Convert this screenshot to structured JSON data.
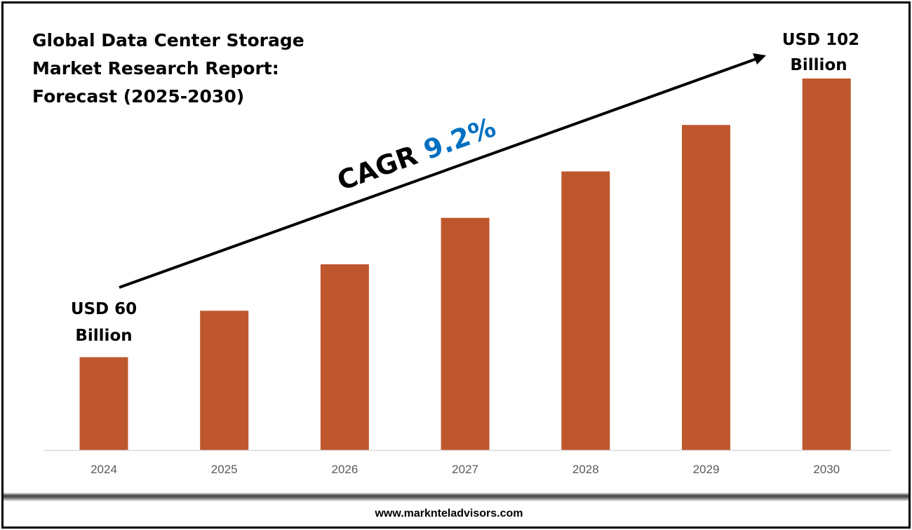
{
  "chart_data": {
    "type": "bar",
    "title": [
      "Global Data Center Storage",
      "Market Research Report:",
      "Forecast (2025-2030)"
    ],
    "categories": [
      "2024",
      "2025",
      "2026",
      "2027",
      "2028",
      "2029",
      "2030"
    ],
    "values": [
      60,
      67,
      74,
      81,
      88,
      95,
      102
    ],
    "unit": "USD Billion",
    "data_labels": {
      "first": [
        "USD 60",
        "Billion"
      ],
      "last": [
        "USD 102",
        "Billion"
      ]
    },
    "annotation": {
      "cagr_label": "CAGR",
      "cagr_value": "9.2%"
    },
    "xlabel": "",
    "ylabel": "",
    "ylim": [
      46,
      102
    ],
    "grid": false,
    "colors": {
      "bar": "#BE572E",
      "cagr_value": "#0070C0",
      "tick": "#595959",
      "baseline": "#D9D9D9"
    }
  },
  "footer": {
    "url": "www.marknteladvisors.com"
  }
}
